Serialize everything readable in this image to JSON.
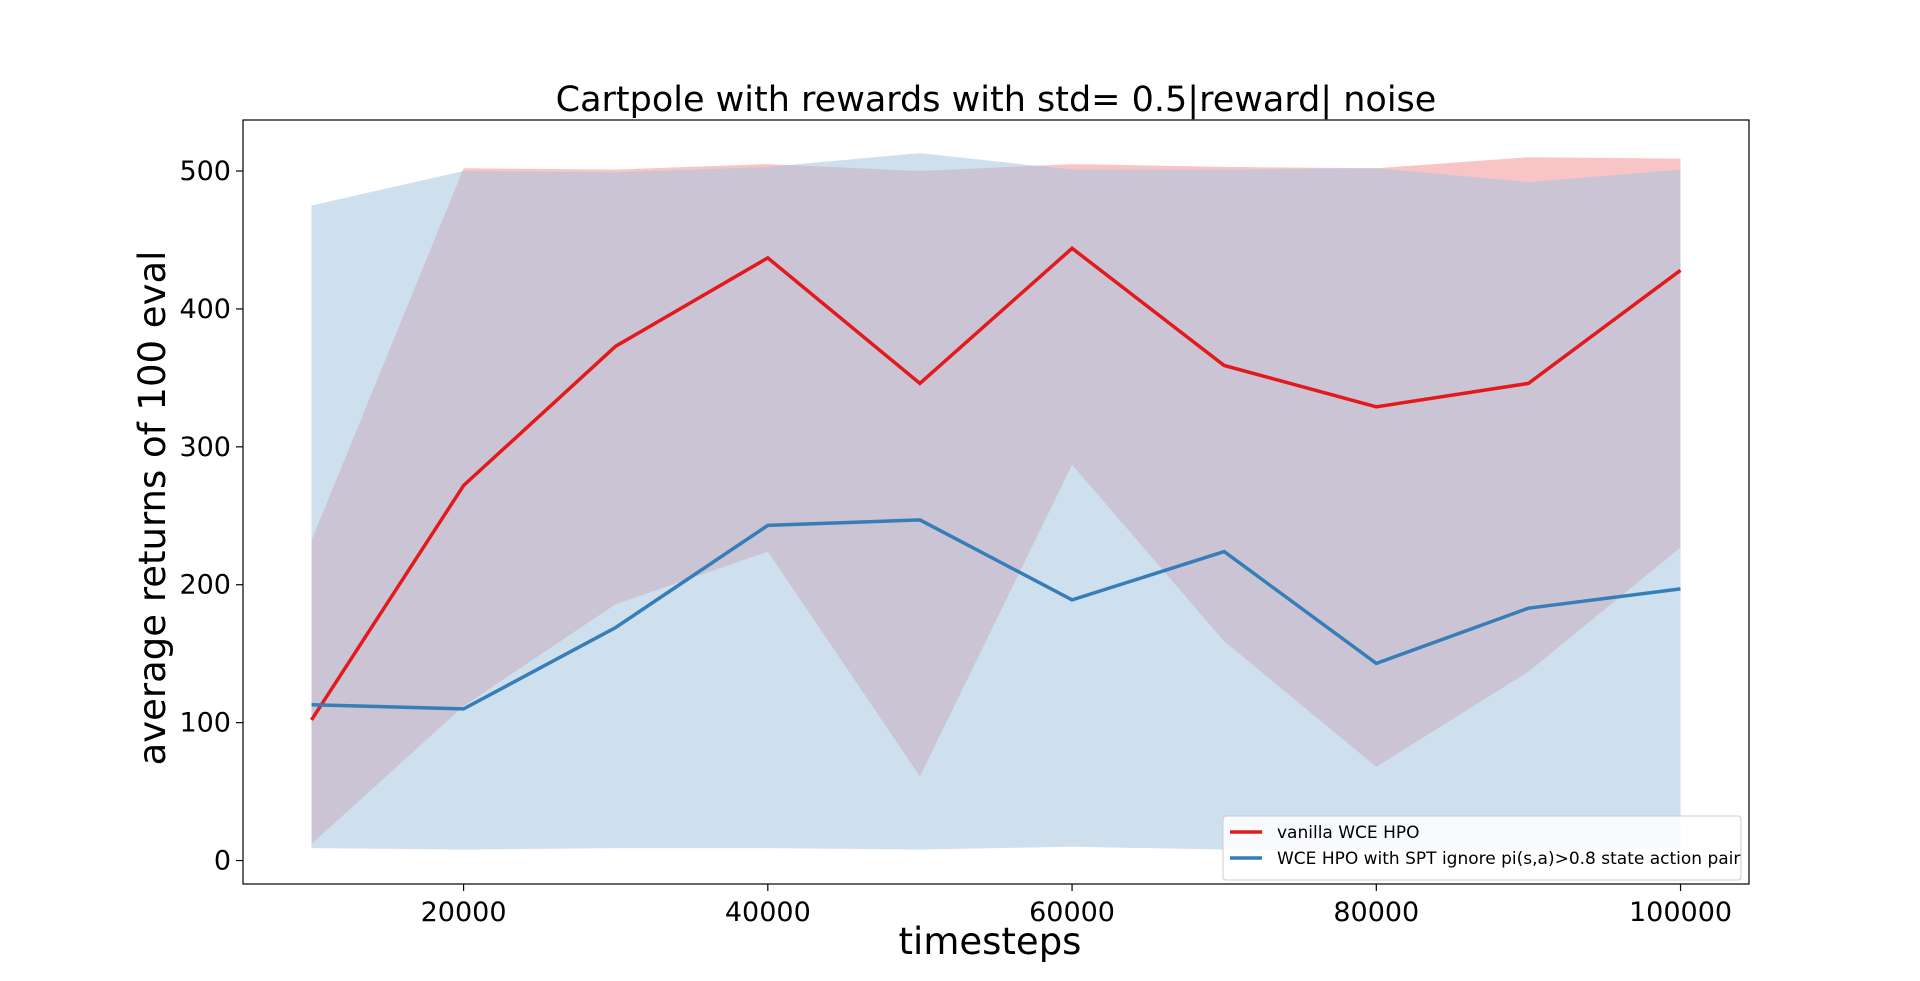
{
  "chart_data": {
    "type": "line",
    "title": "Cartpole with rewards with std= 0.5|reward| noise",
    "xlabel": "timesteps",
    "ylabel": "average returns of 100 eval",
    "x": [
      10000,
      20000,
      30000,
      40000,
      50000,
      60000,
      70000,
      80000,
      90000,
      100000
    ],
    "xlim": [
      5500,
      104500
    ],
    "ylim": [
      -17,
      537
    ],
    "xticks": [
      20000,
      40000,
      60000,
      80000,
      100000
    ],
    "yticks": [
      0,
      100,
      200,
      300,
      400,
      500
    ],
    "grid": false,
    "legend_position": "lower-right",
    "series": [
      {
        "name": "vanilla WCE HPO",
        "color": "#e31a1c",
        "fill_color": "#f4a5a6",
        "values": [
          102,
          272,
          373,
          437,
          346,
          444,
          359,
          329,
          346,
          428
        ],
        "band_upper": [
          232,
          502,
          501,
          505,
          500,
          505,
          503,
          502,
          510,
          509
        ],
        "band_lower": [
          12,
          112,
          186,
          224,
          61,
          287,
          159,
          68,
          137,
          227
        ]
      },
      {
        "name": "WCE HPO with SPT ignore pi(s,a)>0.8 state action pair",
        "color": "#377eb8",
        "fill_color": "#a6c4e0",
        "values": [
          113,
          110,
          169,
          243,
          247,
          189,
          224,
          143,
          183,
          197
        ],
        "band_upper": [
          475,
          500,
          499,
          503,
          513,
          501,
          501,
          502,
          492,
          501
        ],
        "band_lower": [
          9,
          8,
          9,
          9,
          8,
          10,
          8,
          7,
          7,
          9
        ]
      }
    ]
  }
}
